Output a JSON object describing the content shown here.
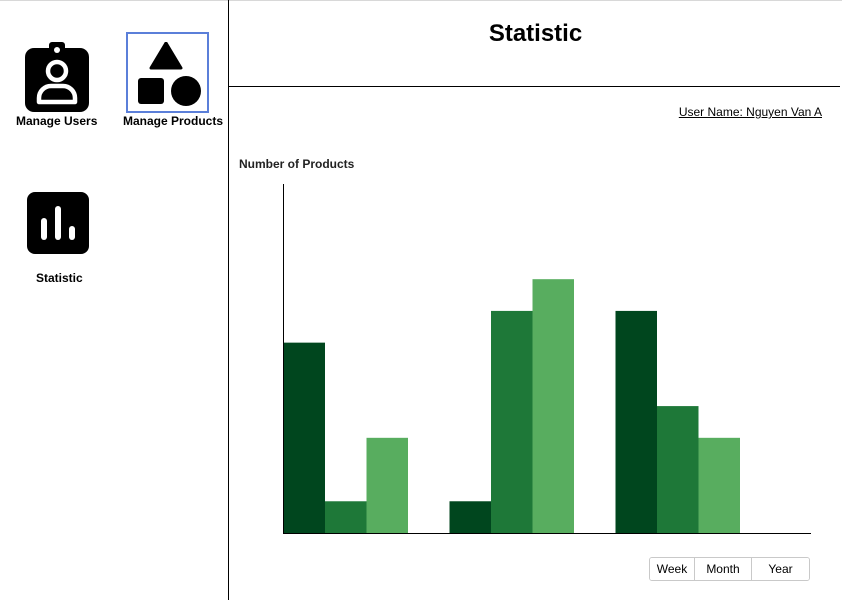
{
  "sidebar": {
    "items": [
      {
        "label": "Manage Users",
        "icon": "user-badge-icon",
        "selected": false
      },
      {
        "label": "Manage Products",
        "icon": "shapes-icon",
        "selected": true
      },
      {
        "label": "Statistic",
        "icon": "bar-chart-icon",
        "selected": false
      }
    ],
    "selected_color": "#5b7fd9"
  },
  "header": {
    "title": "Statistic"
  },
  "user": {
    "label": "User Name: Nguyen Van A"
  },
  "chart_data": {
    "type": "bar",
    "title": "Number of Products",
    "xlabel": "",
    "ylabel": "",
    "categories": [
      "",
      "",
      ""
    ],
    "series": [
      {
        "values": [
          6,
          1,
          7
        ],
        "color": "#00461e"
      },
      {
        "values": [
          1,
          7,
          4
        ],
        "color": "#1e7838"
      },
      {
        "values": [
          3,
          8,
          3
        ],
        "color": "#58ad5f"
      }
    ],
    "ylim": [
      0,
      11
    ],
    "grid": false,
    "legend": "none"
  },
  "range_buttons": [
    "Week",
    "Month",
    "Year"
  ]
}
